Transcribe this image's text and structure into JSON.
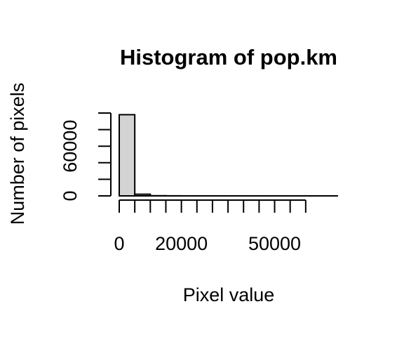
{
  "chart_data": {
    "type": "bar",
    "title": "Histogram of pop.km",
    "xlabel": "Pixel value",
    "ylabel": "Number of pixels",
    "bin_width": 5000,
    "bins": [
      {
        "from": 0,
        "to": 5000,
        "count": 98000
      },
      {
        "from": 5000,
        "to": 10000,
        "count": 2000
      },
      {
        "from": 10000,
        "to": 15000,
        "count": 200
      },
      {
        "from": 15000,
        "to": 20000,
        "count": 80
      },
      {
        "from": 20000,
        "to": 25000,
        "count": 40
      },
      {
        "from": 25000,
        "to": 30000,
        "count": 20
      },
      {
        "from": 30000,
        "to": 35000,
        "count": 10
      },
      {
        "from": 35000,
        "to": 40000,
        "count": 6
      },
      {
        "from": 40000,
        "to": 45000,
        "count": 4
      },
      {
        "from": 45000,
        "to": 50000,
        "count": 3
      },
      {
        "from": 50000,
        "to": 55000,
        "count": 2
      },
      {
        "from": 55000,
        "to": 60000,
        "count": 2
      },
      {
        "from": 60000,
        "to": 65000,
        "count": 1
      }
    ],
    "x_ticks": [
      0,
      5000,
      10000,
      15000,
      20000,
      25000,
      30000,
      35000,
      40000,
      45000,
      50000,
      55000,
      60000
    ],
    "x_tick_labels": [
      {
        "value": 0,
        "label": "0"
      },
      {
        "value": 20000,
        "label": "20000"
      },
      {
        "value": 50000,
        "label": "50000"
      }
    ],
    "y_ticks": [
      0,
      20000,
      40000,
      60000,
      80000,
      100000
    ],
    "y_tick_labels": [
      {
        "value": 0,
        "label": "0"
      },
      {
        "value": 60000,
        "label": "60000"
      }
    ],
    "xlim": [
      0,
      65000
    ],
    "ylim": [
      0,
      100000
    ],
    "grid": false,
    "bar_fill": "#d3d3d3",
    "bar_stroke": "#000000"
  }
}
